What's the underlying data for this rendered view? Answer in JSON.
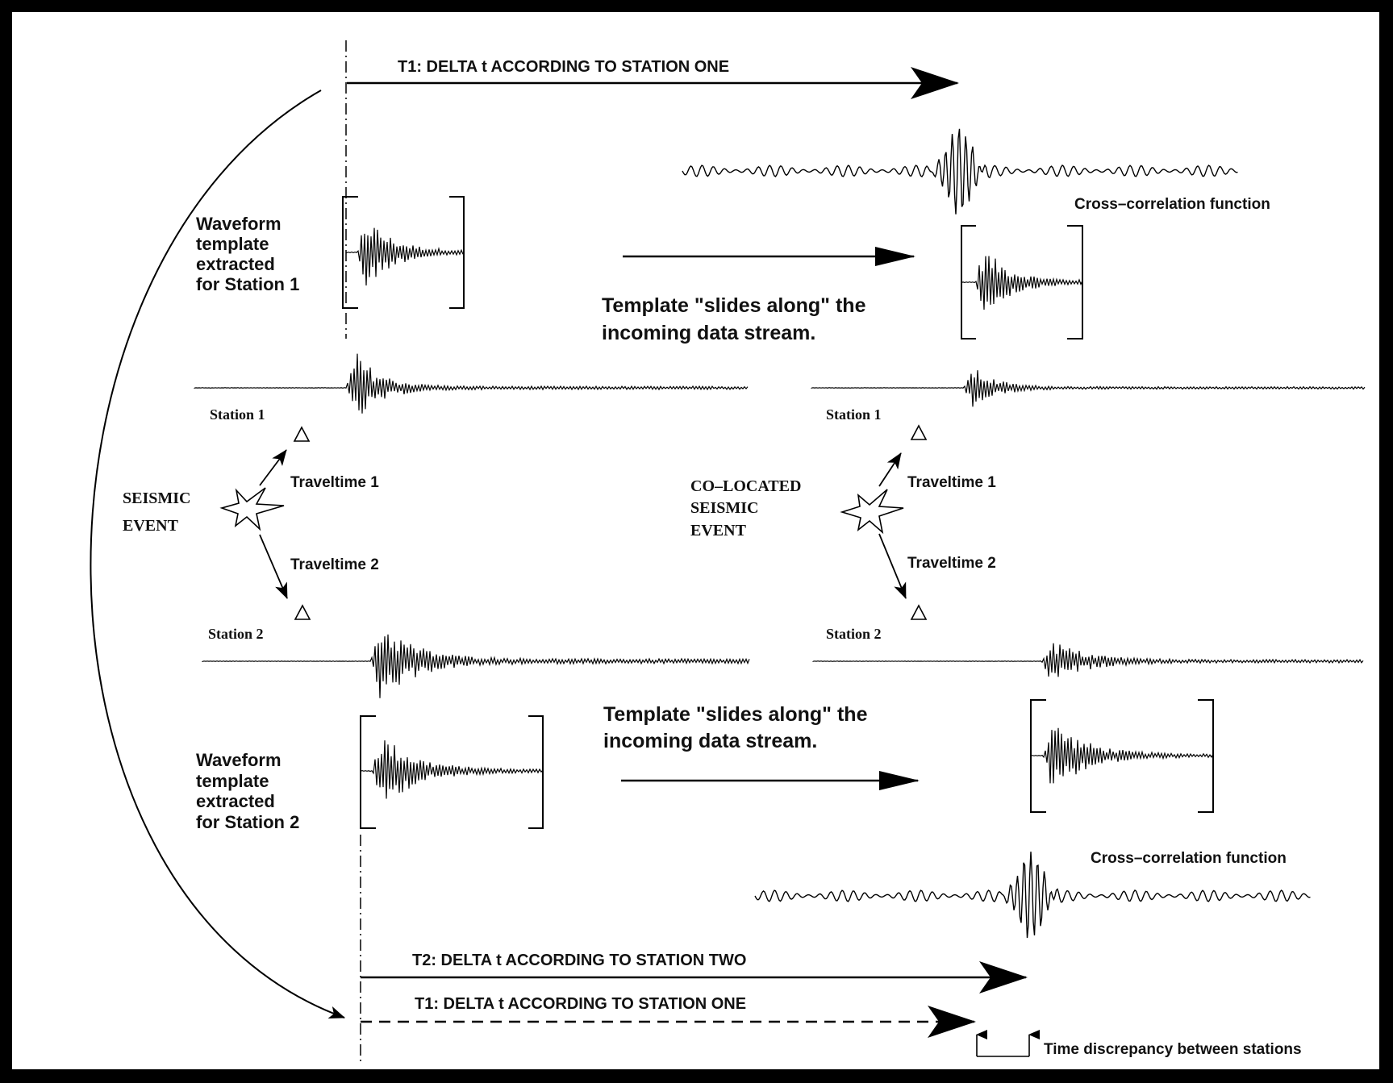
{
  "top_arrow_label": "T1: DELTA t  ACCORDING TO STATION ONE",
  "cc_top_label": "Cross–correlation function",
  "cc_bottom_label": "Cross–correlation function",
  "template1_label": [
    "Waveform",
    "template",
    "extracted",
    "for Station 1"
  ],
  "template2_label": [
    "Waveform",
    "template",
    "extracted",
    "for Station 2"
  ],
  "slide_text_top": [
    "Template \"slides along\" the",
    "incoming data stream."
  ],
  "slide_text_bottom": [
    "Template \"slides along\" the",
    "incoming data stream."
  ],
  "left": {
    "station1": "Station 1",
    "station2": "Station 2",
    "event": [
      "SEISMIC",
      "EVENT"
    ],
    "traveltime1": "Traveltime 1",
    "traveltime2": "Traveltime 2"
  },
  "right": {
    "station1": "Station 1",
    "station2": "Station 2",
    "event": [
      "CO–LOCATED",
      "SEISMIC",
      "EVENT"
    ],
    "traveltime1": "Traveltime 1",
    "traveltime2": "Traveltime 2"
  },
  "bottom_t2_label": "T2: DELTA t  ACCORDING TO STATION TWO",
  "bottom_t1_label": "T1: DELTA t  ACCORDING TO STATION ONE",
  "discrepancy_label": "Time discrepancy between stations"
}
